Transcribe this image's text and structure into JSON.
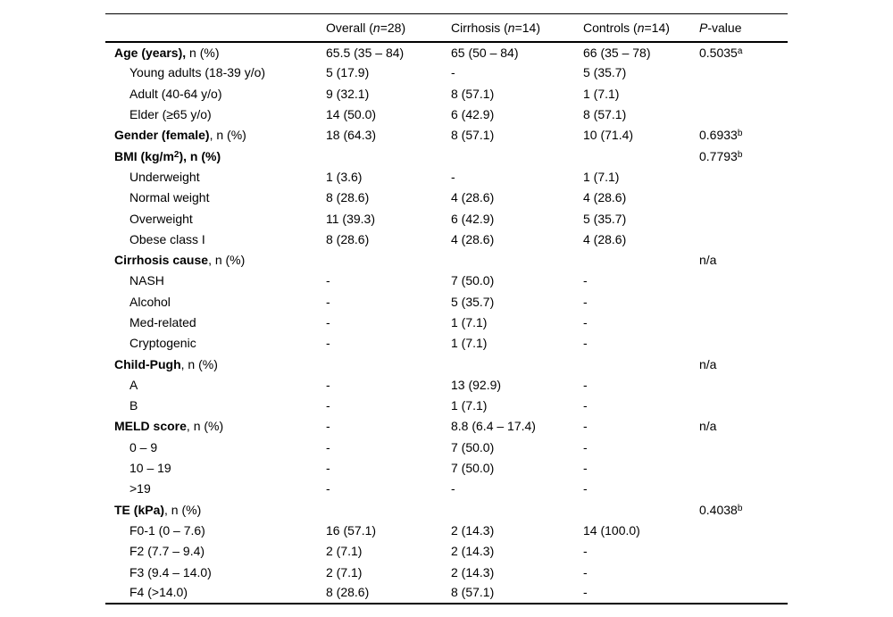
{
  "table": {
    "headers": {
      "label": "",
      "overall": {
        "prefix": "Overall (",
        "italic": "n",
        "suffix": "=28)"
      },
      "cirrhosis": {
        "prefix": "Cirrhosis (",
        "italic": "n",
        "suffix": "=14)"
      },
      "controls": {
        "prefix": "Controls (",
        "italic": "n",
        "suffix": "=14)"
      },
      "pvalue": {
        "prefix": "",
        "italic": "P",
        "suffix": "-value"
      }
    },
    "rows": [
      {
        "indent": false,
        "bold": "Age (years),",
        "sup": "",
        "bold2": "",
        "rest": " n (%)",
        "overall": "65.5 (35 – 84)",
        "cirrhosis": "65 (50 – 84)",
        "controls": "66 (35 – 78)",
        "pvalue": "0.5035",
        "psup": "a"
      },
      {
        "indent": true,
        "bold": "",
        "sup": "",
        "bold2": "",
        "rest": "Young adults (18-39 y/o)",
        "overall": "5 (17.9)",
        "cirrhosis": "-",
        "controls": "5 (35.7)",
        "pvalue": "",
        "psup": ""
      },
      {
        "indent": true,
        "bold": "",
        "sup": "",
        "bold2": "",
        "rest": "Adult (40-64 y/o)",
        "overall": "9 (32.1)",
        "cirrhosis": "8 (57.1)",
        "controls": "1 (7.1)",
        "pvalue": "",
        "psup": ""
      },
      {
        "indent": true,
        "bold": "",
        "sup": "",
        "bold2": "",
        "rest": "Elder (≥65 y/o)",
        "overall": "14 (50.0)",
        "cirrhosis": "6 (42.9)",
        "controls": "8 (57.1)",
        "pvalue": "",
        "psup": ""
      },
      {
        "indent": false,
        "bold": "Gender (female)",
        "sup": "",
        "bold2": "",
        "rest": ", n (%)",
        "overall": "18 (64.3)",
        "cirrhosis": "8 (57.1)",
        "controls": "10 (71.4)",
        "pvalue": "0.6933",
        "psup": "b"
      },
      {
        "indent": false,
        "bold": "BMI (kg/m",
        "sup": "2",
        "bold2": "), n (%)",
        "rest": "",
        "overall": "",
        "cirrhosis": "",
        "controls": "",
        "pvalue": "0.7793",
        "psup": "b"
      },
      {
        "indent": true,
        "bold": "",
        "sup": "",
        "bold2": "",
        "rest": "Underweight",
        "overall": "1 (3.6)",
        "cirrhosis": "-",
        "controls": "1 (7.1)",
        "pvalue": "",
        "psup": ""
      },
      {
        "indent": true,
        "bold": "",
        "sup": "",
        "bold2": "",
        "rest": "Normal weight",
        "overall": "8 (28.6)",
        "cirrhosis": "4 (28.6)",
        "controls": "4 (28.6)",
        "pvalue": "",
        "psup": ""
      },
      {
        "indent": true,
        "bold": "",
        "sup": "",
        "bold2": "",
        "rest": "Overweight",
        "overall": "11 (39.3)",
        "cirrhosis": "6 (42.9)",
        "controls": "5 (35.7)",
        "pvalue": "",
        "psup": ""
      },
      {
        "indent": true,
        "bold": "",
        "sup": "",
        "bold2": "",
        "rest": "Obese class I",
        "overall": "8 (28.6)",
        "cirrhosis": "4 (28.6)",
        "controls": "4 (28.6)",
        "pvalue": "",
        "psup": ""
      },
      {
        "indent": false,
        "bold": "Cirrhosis cause",
        "sup": "",
        "bold2": "",
        "rest": ", n (%)",
        "overall": "",
        "cirrhosis": "",
        "controls": "",
        "pvalue": "n/a",
        "psup": ""
      },
      {
        "indent": true,
        "bold": "",
        "sup": "",
        "bold2": "",
        "rest": "NASH",
        "overall": "-",
        "cirrhosis": "7 (50.0)",
        "controls": "-",
        "pvalue": "",
        "psup": ""
      },
      {
        "indent": true,
        "bold": "",
        "sup": "",
        "bold2": "",
        "rest": "Alcohol",
        "overall": "-",
        "cirrhosis": "5 (35.7)",
        "controls": "-",
        "pvalue": "",
        "psup": ""
      },
      {
        "indent": true,
        "bold": "",
        "sup": "",
        "bold2": "",
        "rest": "Med-related",
        "overall": "-",
        "cirrhosis": "1 (7.1)",
        "controls": "-",
        "pvalue": "",
        "psup": ""
      },
      {
        "indent": true,
        "bold": "",
        "sup": "",
        "bold2": "",
        "rest": "Cryptogenic",
        "overall": "-",
        "cirrhosis": "1 (7.1)",
        "controls": "-",
        "pvalue": "",
        "psup": ""
      },
      {
        "indent": false,
        "bold": "Child-Pugh",
        "sup": "",
        "bold2": "",
        "rest": ", n (%)",
        "overall": "",
        "cirrhosis": "",
        "controls": "",
        "pvalue": "n/a",
        "psup": ""
      },
      {
        "indent": true,
        "bold": "",
        "sup": "",
        "bold2": "",
        "rest": "A",
        "overall": "-",
        "cirrhosis": "13 (92.9)",
        "controls": "-",
        "pvalue": "",
        "psup": ""
      },
      {
        "indent": true,
        "bold": "",
        "sup": "",
        "bold2": "",
        "rest": "B",
        "overall": "-",
        "cirrhosis": "1 (7.1)",
        "controls": "-",
        "pvalue": "",
        "psup": ""
      },
      {
        "indent": false,
        "bold": "MELD score",
        "sup": "",
        "bold2": "",
        "rest": ", n (%)",
        "overall": "-",
        "cirrhosis": "8.8 (6.4 – 17.4)",
        "controls": "-",
        "pvalue": "n/a",
        "psup": ""
      },
      {
        "indent": true,
        "bold": "",
        "sup": "",
        "bold2": "",
        "rest": "0 – 9",
        "overall": "-",
        "cirrhosis": "7 (50.0)",
        "controls": "-",
        "pvalue": "",
        "psup": ""
      },
      {
        "indent": true,
        "bold": "",
        "sup": "",
        "bold2": "",
        "rest": "10 – 19",
        "overall": "-",
        "cirrhosis": "7 (50.0)",
        "controls": "-",
        "pvalue": "",
        "psup": ""
      },
      {
        "indent": true,
        "bold": "",
        "sup": "",
        "bold2": "",
        "rest": ">19",
        "overall": "-",
        "cirrhosis": "-",
        "controls": "-",
        "pvalue": "",
        "psup": ""
      },
      {
        "indent": false,
        "bold": "TE (kPa)",
        "sup": "",
        "bold2": "",
        "rest": ", n (%)",
        "overall": "",
        "cirrhosis": "",
        "controls": "",
        "pvalue": "0.4038",
        "psup": "b"
      },
      {
        "indent": true,
        "bold": "",
        "sup": "",
        "bold2": "",
        "rest": "F0-1 (0 – 7.6)",
        "overall": "16 (57.1)",
        "cirrhosis": "2 (14.3)",
        "controls": "14 (100.0)",
        "pvalue": "",
        "psup": ""
      },
      {
        "indent": true,
        "bold": "",
        "sup": "",
        "bold2": "",
        "rest": "F2 (7.7 – 9.4)",
        "overall": "2 (7.1)",
        "cirrhosis": "2 (14.3)",
        "controls": "-",
        "pvalue": "",
        "psup": ""
      },
      {
        "indent": true,
        "bold": "",
        "sup": "",
        "bold2": "",
        "rest": "F3 (9.4 – 14.0)",
        "overall": "2 (7.1)",
        "cirrhosis": "2 (14.3)",
        "controls": "-",
        "pvalue": "",
        "psup": ""
      },
      {
        "indent": true,
        "bold": "",
        "sup": "",
        "bold2": "",
        "rest": "F4 (>14.0)",
        "overall": "8 (28.6)",
        "cirrhosis": "8 (57.1)",
        "controls": "-",
        "pvalue": "",
        "psup": ""
      }
    ]
  }
}
